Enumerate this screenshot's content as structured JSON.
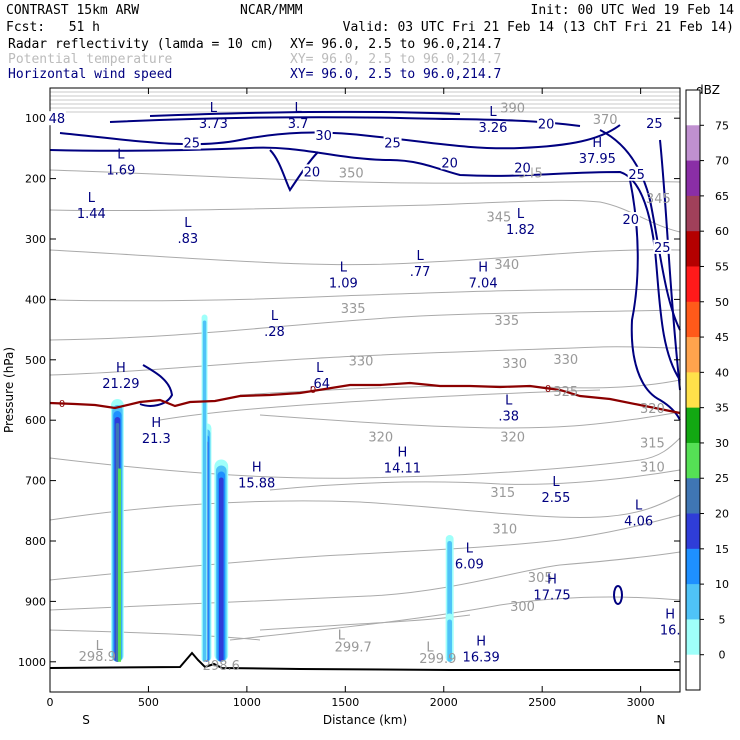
{
  "header": {
    "title": "CONTRAST 15km ARW",
    "source": "NCAR/MMM",
    "init": "Init: 00 UTC Wed 19 Feb 14",
    "fcst_label": "Fcst:",
    "fcst_value": "51 h",
    "valid": "Valid: 03 UTC Fri 21 Feb 14 (13 ChT Fri 21 Feb 14)",
    "fields": [
      {
        "name": "Radar reflectivity (lamda = 10 cm)",
        "xy": "XY=   96.0,   2.5 to   96.0,214.7",
        "color": "#000000"
      },
      {
        "name": "Potential temperature",
        "xy": "XY=   96.0,   2.5 to   96.0,214.7",
        "color": "#bbbbbb"
      },
      {
        "name": "Horizontal wind speed",
        "xy": "XY=   96.0,   2.5 to   96.0,214.7",
        "color": "#000080"
      }
    ]
  },
  "colorbar": {
    "unit": "dBZ",
    "labels": [
      "0",
      "5",
      "10",
      "15",
      "20",
      "25",
      "30",
      "35",
      "40",
      "45",
      "50",
      "55",
      "60",
      "65",
      "70",
      "75"
    ],
    "colors": [
      "#ffffff",
      "#9ffffa",
      "#4fc3f7",
      "#1e90ff",
      "#2f3dd8",
      "#3f76b4",
      "#55e055",
      "#12a812",
      "#ffe14a",
      "#ffa34d",
      "#ff5a1a",
      "#ff1a1a",
      "#b40000",
      "#a0405a",
      "#8a2ea6",
      "#c090d0",
      "#ffffff"
    ]
  },
  "chart_data": {
    "type": "vertical-cross-section",
    "xlabel": "Distance (km)",
    "ylabel": "Pressure (hPa)",
    "xlim": [
      0,
      3200
    ],
    "ylim": [
      1050,
      50
    ],
    "x_ticks": [
      "0",
      "500",
      "1000",
      "1500",
      "2000",
      "2500",
      "3000"
    ],
    "y_ticks": [
      "100",
      "200",
      "300",
      "400",
      "500",
      "600",
      "700",
      "800",
      "900",
      "1000"
    ],
    "endpoint_labels": {
      "left": "S",
      "right": "N"
    },
    "freezing_level_label": "0",
    "theta_contour_labels": [
      {
        "text": "390",
        "x": 2350,
        "p": 82
      },
      {
        "text": "370",
        "x": 2820,
        "p": 101
      },
      {
        "text": "350",
        "x": 1530,
        "p": 190
      },
      {
        "text": "345",
        "x": 2280,
        "p": 263
      },
      {
        "text": "345",
        "x": 2440,
        "p": 190
      },
      {
        "text": "345",
        "x": 3090,
        "p": 232
      },
      {
        "text": "340",
        "x": 2320,
        "p": 341
      },
      {
        "text": "335",
        "x": 1540,
        "p": 414
      },
      {
        "text": "335",
        "x": 2320,
        "p": 434
      },
      {
        "text": "330",
        "x": 1580,
        "p": 501
      },
      {
        "text": "330",
        "x": 2360,
        "p": 505
      },
      {
        "text": "330",
        "x": 2620,
        "p": 499
      },
      {
        "text": "325",
        "x": 2620,
        "p": 552
      },
      {
        "text": "320",
        "x": 1680,
        "p": 627
      },
      {
        "text": "320",
        "x": 2350,
        "p": 627
      },
      {
        "text": "320",
        "x": 3060,
        "p": 580
      },
      {
        "text": "315",
        "x": 2300,
        "p": 719
      },
      {
        "text": "315",
        "x": 3060,
        "p": 637
      },
      {
        "text": "310",
        "x": 3060,
        "p": 677
      },
      {
        "text": "310",
        "x": 2310,
        "p": 779
      },
      {
        "text": "305",
        "x": 2490,
        "p": 860
      },
      {
        "text": "300",
        "x": 2400,
        "p": 908
      },
      {
        "text": "299.7",
        "x": 1540,
        "p": 975
      },
      {
        "text": "299.9",
        "x": 1970,
        "p": 994
      },
      {
        "text": "298.9",
        "x": 240,
        "p": 990
      },
      {
        "text": "298.6",
        "x": 870,
        "p": 1005
      }
    ],
    "theta_markers": [
      {
        "kind": "L",
        "x": 1480,
        "p": 955
      },
      {
        "kind": "L",
        "x": 1930,
        "p": 975
      },
      {
        "kind": "L",
        "x": 250,
        "p": 972
      }
    ],
    "wind_contour_labels": [
      {
        "text": "48",
        "x": 35,
        "p": 100
      },
      {
        "text": "30",
        "x": 1390,
        "p": 128
      },
      {
        "text": "25",
        "x": 720,
        "p": 140
      },
      {
        "text": "25",
        "x": 1740,
        "p": 140
      },
      {
        "text": "25",
        "x": 3070,
        "p": 108
      },
      {
        "text": "25",
        "x": 2980,
        "p": 192
      },
      {
        "text": "25",
        "x": 3110,
        "p": 313
      },
      {
        "text": "20",
        "x": 2520,
        "p": 109
      },
      {
        "text": "20",
        "x": 1330,
        "p": 188
      },
      {
        "text": "20",
        "x": 2030,
        "p": 173
      },
      {
        "text": "20",
        "x": 2400,
        "p": 182
      },
      {
        "text": "20",
        "x": 2950,
        "p": 267
      }
    ],
    "wind_extrema": [
      {
        "kind": "L",
        "value": "3.73",
        "x": 830,
        "p": 100
      },
      {
        "kind": "L",
        "value": "3.7",
        "x": 1260,
        "p": 100
      },
      {
        "kind": "L",
        "value": "3.26",
        "x": 2250,
        "p": 106
      },
      {
        "kind": "H",
        "value": "37.95",
        "x": 2780,
        "p": 158
      },
      {
        "kind": "L",
        "value": "1.69",
        "x": 360,
        "p": 177
      },
      {
        "kind": "L",
        "value": "1.44",
        "x": 210,
        "p": 249
      },
      {
        "kind": "L",
        "value": ".83",
        "x": 700,
        "p": 290
      },
      {
        "kind": "L",
        "value": "1.82",
        "x": 2390,
        "p": 275
      },
      {
        "kind": "L",
        "value": ".77",
        "x": 1880,
        "p": 345
      },
      {
        "kind": "L",
        "value": "1.09",
        "x": 1490,
        "p": 364
      },
      {
        "kind": "H",
        "value": "7.04",
        "x": 2200,
        "p": 364
      },
      {
        "kind": "L",
        "value": ".28",
        "x": 1140,
        "p": 444
      },
      {
        "kind": "H",
        "value": "21.29",
        "x": 360,
        "p": 530
      },
      {
        "kind": "L",
        "value": ".64",
        "x": 1370,
        "p": 530
      },
      {
        "kind": "L",
        "value": ".38",
        "x": 2330,
        "p": 584
      },
      {
        "kind": "H",
        "value": "21.3",
        "x": 540,
        "p": 621
      },
      {
        "kind": "H",
        "value": "14.11",
        "x": 1790,
        "p": 670
      },
      {
        "kind": "H",
        "value": "15.88",
        "x": 1050,
        "p": 695
      },
      {
        "kind": "L",
        "value": "2.55",
        "x": 2570,
        "p": 719
      },
      {
        "kind": "L",
        "value": "4.06",
        "x": 2990,
        "p": 758
      },
      {
        "kind": "L",
        "value": "6.09",
        "x": 2130,
        "p": 829
      },
      {
        "kind": "H",
        "value": "17.75",
        "x": 2550,
        "p": 880
      },
      {
        "kind": "H",
        "value": "16.",
        "x": 3150,
        "p": 938
      },
      {
        "kind": "H",
        "value": "16.39",
        "x": 2190,
        "p": 983
      }
    ],
    "reflectivity_columns": [
      {
        "x0": 310,
        "x1": 375,
        "ptop": 565,
        "max_dbz": 25
      },
      {
        "x0": 770,
        "x1": 820,
        "ptop": 605,
        "max_dbz": 20
      },
      {
        "x0": 835,
        "x1": 905,
        "ptop": 665,
        "max_dbz": 20
      },
      {
        "x0": 2010,
        "x1": 2050,
        "ptop": 790,
        "max_dbz": 10
      },
      {
        "x0": 2010,
        "x1": 2050,
        "ptop": 920,
        "max_dbz": 10
      },
      {
        "x0": 770,
        "x1": 800,
        "ptop": 425,
        "max_dbz": 10
      }
    ]
  }
}
